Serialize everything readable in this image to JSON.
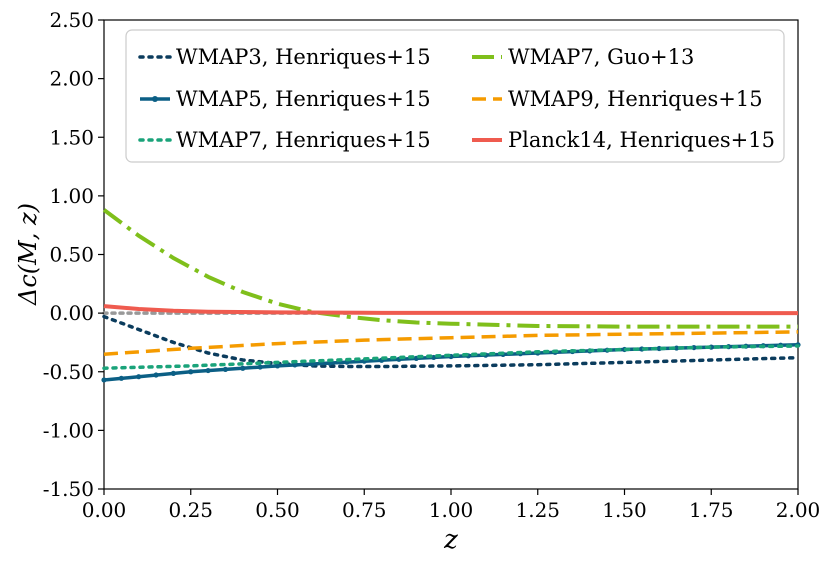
{
  "chart_data": {
    "type": "line",
    "xlabel": "z",
    "ylabel": "Δc(M, z)",
    "xlim": [
      0.0,
      2.0
    ],
    "ylim": [
      -1.5,
      2.5
    ],
    "xticks": [
      0.0,
      0.25,
      0.5,
      0.75,
      1.0,
      1.25,
      1.5,
      1.75,
      2.0
    ],
    "xtick_labels": [
      "0.00",
      "0.25",
      "0.50",
      "0.75",
      "1.00",
      "1.25",
      "1.50",
      "1.75",
      "2.00"
    ],
    "yticks": [
      -1.5,
      -1.0,
      -0.5,
      0.0,
      0.5,
      1.0,
      1.5,
      2.0,
      2.5
    ],
    "ytick_labels": [
      "-1.50",
      "-1.00",
      "-0.50",
      "0.00",
      "0.50",
      "1.00",
      "1.50",
      "2.00",
      "2.50"
    ],
    "legend_position": "top",
    "legend_columns": 2,
    "reference_line": {
      "y": 0.0,
      "color": "#999999",
      "style": "dotted",
      "x_range": [
        0.0,
        0.7
      ]
    },
    "series": [
      {
        "name": "WMAP3, Henriques+15",
        "color": "#0b3c5d",
        "style": "dotted",
        "x": [
          0.0,
          0.1,
          0.2,
          0.3,
          0.4,
          0.5,
          0.6,
          0.7,
          0.8,
          1.0,
          1.25,
          1.5,
          1.75,
          2.0
        ],
        "y": [
          -0.03,
          -0.14,
          -0.25,
          -0.34,
          -0.4,
          -0.43,
          -0.45,
          -0.455,
          -0.455,
          -0.45,
          -0.44,
          -0.42,
          -0.4,
          -0.38
        ]
      },
      {
        "name": "WMAP5, Henriques+15",
        "color": "#0b5f85",
        "style": "solid-marker",
        "x": [
          0.0,
          0.25,
          0.5,
          0.75,
          1.0,
          1.25,
          1.5,
          1.75,
          2.0
        ],
        "y": [
          -0.57,
          -0.5,
          -0.45,
          -0.41,
          -0.37,
          -0.34,
          -0.31,
          -0.29,
          -0.27
        ]
      },
      {
        "name": "WMAP7, Henriques+15",
        "color": "#1aa37a",
        "style": "dotted",
        "x": [
          0.0,
          0.25,
          0.5,
          0.75,
          1.0,
          1.25,
          1.5,
          1.75,
          2.0
        ],
        "y": [
          -0.47,
          -0.45,
          -0.42,
          -0.39,
          -0.36,
          -0.33,
          -0.31,
          -0.29,
          -0.28
        ]
      },
      {
        "name": "WMAP7, Guo+13",
        "color": "#7fbf1b",
        "style": "dashdot",
        "x": [
          0.0,
          0.1,
          0.2,
          0.3,
          0.4,
          0.5,
          0.6,
          0.7,
          0.8,
          0.9,
          1.0,
          1.25,
          1.5,
          1.75,
          2.0
        ],
        "y": [
          0.88,
          0.66,
          0.47,
          0.31,
          0.18,
          0.08,
          0.01,
          -0.03,
          -0.06,
          -0.08,
          -0.09,
          -0.11,
          -0.115,
          -0.115,
          -0.115
        ]
      },
      {
        "name": "WMAP9, Henriques+15",
        "color": "#f59b00",
        "style": "dashed",
        "x": [
          0.0,
          0.25,
          0.5,
          0.75,
          1.0,
          1.25,
          1.5,
          1.75,
          2.0
        ],
        "y": [
          -0.35,
          -0.3,
          -0.26,
          -0.23,
          -0.21,
          -0.19,
          -0.18,
          -0.17,
          -0.16
        ]
      },
      {
        "name": "Planck14, Henriques+15",
        "color": "#ef5b4f",
        "style": "solid",
        "x": [
          0.0,
          0.1,
          0.2,
          0.3,
          0.5,
          0.75,
          1.0,
          1.5,
          2.0
        ],
        "y": [
          0.06,
          0.035,
          0.02,
          0.012,
          0.006,
          0.003,
          0.002,
          0.001,
          0.0
        ]
      }
    ]
  }
}
